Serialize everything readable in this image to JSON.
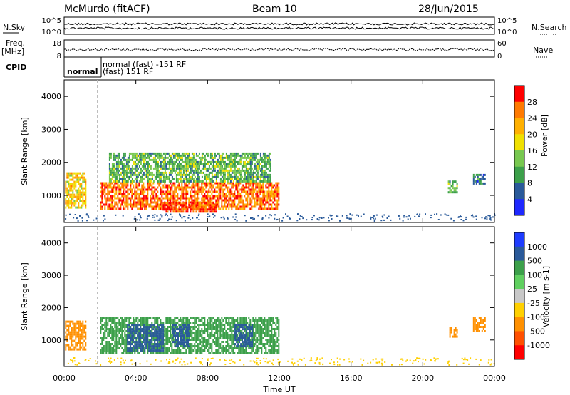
{
  "header": {
    "station": "McMurdo (fitACF)",
    "beam": "Beam 10",
    "date": "28/Jun/2015"
  },
  "aux": {
    "nsky_label": "N.Sky",
    "nsky_ticks": [
      "10^5",
      "10^0"
    ],
    "nsearch_label": "N.Search",
    "nsearch_ticks": [
      "10^5",
      "10^0"
    ],
    "freq_label": "Freq.",
    "freq_unit": "[MHz]",
    "freq_ticks": [
      "18",
      "8"
    ],
    "nave_label": "Nave",
    "nave_ticks": [
      "60",
      "0"
    ],
    "cpid_label": "CPID",
    "cpid_entries": [
      {
        "text": "normal",
        "row": 0
      },
      {
        "text": "normal (fast) -151 RF",
        "row": 1
      },
      {
        "text": "(fast) 151 RF",
        "row": 2
      }
    ]
  },
  "chart_data": [
    {
      "type": "heatmap",
      "name": "power-panel",
      "ylabel": "Slant Range [km]",
      "xlabel": "",
      "xlim": [
        "00:00",
        "24:00"
      ],
      "ylim": [
        180,
        4500
      ],
      "yticks": [
        "1000",
        "2000",
        "3000",
        "4000"
      ],
      "colorbar": {
        "label": "Power [dB]",
        "ticks": [
          "28",
          "24",
          "20",
          "16",
          "12",
          "8",
          "4"
        ],
        "colors": [
          "#ff0000",
          "#ff7a00",
          "#ffb000",
          "#f0e000",
          "#78c850",
          "#3ca04a",
          "#2a5a9a",
          "#1e28ff"
        ]
      },
      "blobs": [
        {
          "t": [
            0.05,
            1.2
          ],
          "r": [
            600,
            1700
          ],
          "v": 20
        },
        {
          "t": [
            2.0,
            12.0
          ],
          "r": [
            600,
            1400
          ],
          "v": 26
        },
        {
          "t": [
            2.5,
            11.5
          ],
          "r": [
            1400,
            2300
          ],
          "v": 12
        },
        {
          "t": [
            5.5,
            8.5
          ],
          "r": [
            500,
            800
          ],
          "v": 28
        },
        {
          "t": [
            21.4,
            21.9
          ],
          "r": [
            1100,
            1450
          ],
          "v": 12
        },
        {
          "t": [
            22.8,
            23.5
          ],
          "r": [
            1350,
            1650
          ],
          "v": 8
        }
      ]
    },
    {
      "type": "heatmap",
      "name": "velocity-panel",
      "ylabel": "Slant Range [km]",
      "xlabel": "Time UT",
      "xlim": [
        "00:00",
        "24:00"
      ],
      "ylim": [
        180,
        4500
      ],
      "yticks": [
        "1000",
        "2000",
        "3000",
        "4000"
      ],
      "xticks": [
        "00:00",
        "04:00",
        "08:00",
        "12:00",
        "16:00",
        "20:00",
        "00:00"
      ],
      "colorbar": {
        "label": "Velocity [m s-1]",
        "ticks": [
          "1000",
          "500",
          "100",
          "25",
          "-25",
          "-100",
          "-500",
          "-1000"
        ],
        "colors": [
          "#1e3cff",
          "#2a5a9a",
          "#3ca04a",
          "#60d060",
          "#c8c8c8",
          "#ffd000",
          "#ff9000",
          "#ff5000",
          "#ff0000"
        ]
      },
      "blobs": [
        {
          "t": [
            0.05,
            1.2
          ],
          "r": [
            700,
            1600
          ],
          "v": -150
        },
        {
          "t": [
            2.0,
            12.0
          ],
          "r": [
            600,
            1700
          ],
          "v": 150
        },
        {
          "t": [
            3.5,
            5.5
          ],
          "r": [
            700,
            1500
          ],
          "v": 800
        },
        {
          "t": [
            6.0,
            7.0
          ],
          "r": [
            800,
            1500
          ],
          "v": 800
        },
        {
          "t": [
            9.5,
            10.5
          ],
          "r": [
            800,
            1500
          ],
          "v": 800
        },
        {
          "t": [
            21.4,
            21.9
          ],
          "r": [
            1100,
            1400
          ],
          "v": -150
        },
        {
          "t": [
            22.8,
            23.5
          ],
          "r": [
            1300,
            1700
          ],
          "v": -150
        }
      ]
    }
  ]
}
